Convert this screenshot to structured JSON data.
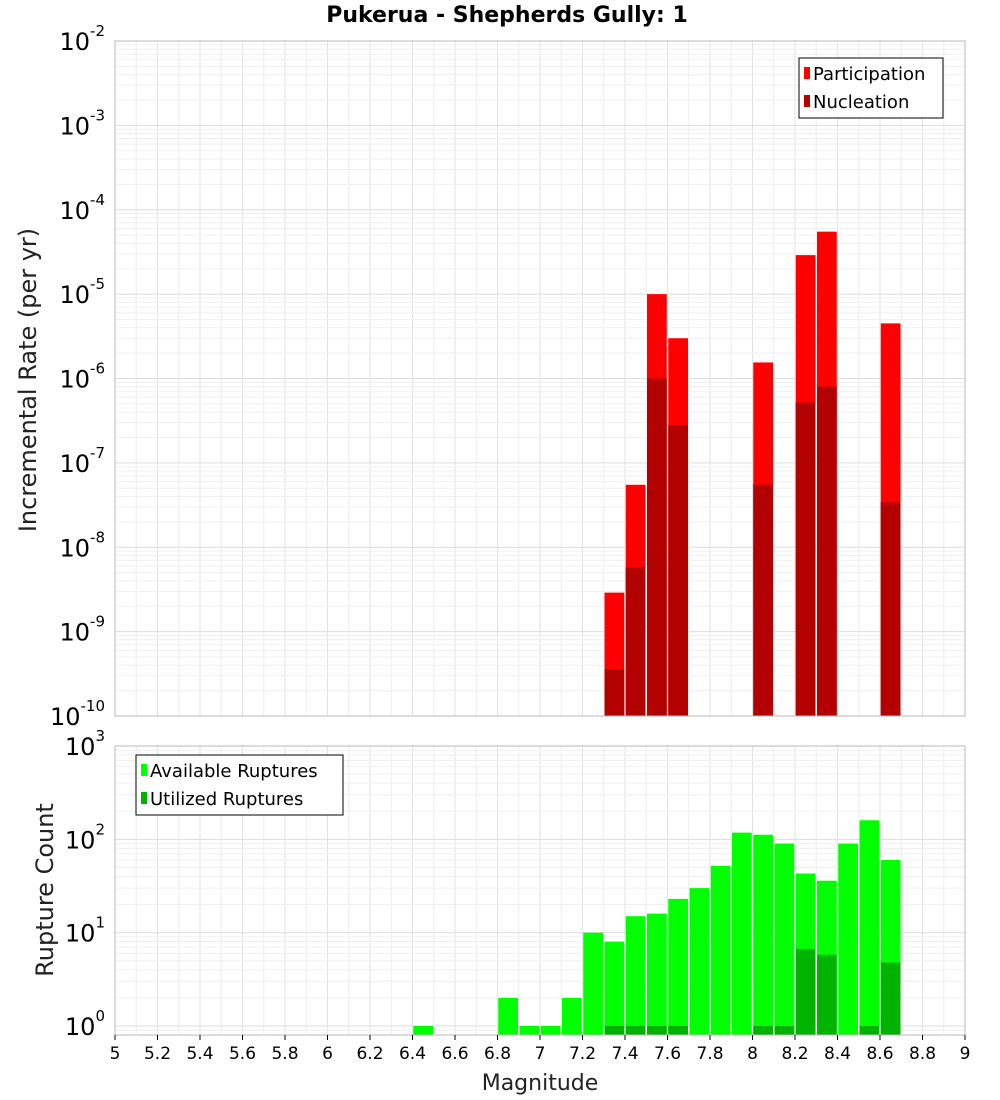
{
  "chart_data": [
    {
      "type": "bar",
      "title": "Pukerua - Shepherds Gully: 1",
      "xlabel": "",
      "ylabel": "Incremental Rate (per yr)",
      "yscale": "log",
      "ylim": [
        1e-10,
        0.01
      ],
      "xlim": [
        5,
        9
      ],
      "yticks": [
        {
          "base": "10",
          "exp": "-10"
        },
        {
          "base": "10",
          "exp": "-9"
        },
        {
          "base": "10",
          "exp": "-8"
        },
        {
          "base": "10",
          "exp": "-7"
        },
        {
          "base": "10",
          "exp": "-6"
        },
        {
          "base": "10",
          "exp": "-5"
        },
        {
          "base": "10",
          "exp": "-4"
        },
        {
          "base": "10",
          "exp": "-3"
        },
        {
          "base": "10",
          "exp": "-2"
        }
      ],
      "legend_position": "top-right",
      "grid": true,
      "series": [
        {
          "name": "Participation",
          "color": "#ff0000",
          "points": [
            {
              "x": 7.35,
              "y": 2.9e-09
            },
            {
              "x": 7.45,
              "y": 5.5e-08
            },
            {
              "x": 7.55,
              "y": 1e-05
            },
            {
              "x": 7.65,
              "y": 3e-06
            },
            {
              "x": 8.05,
              "y": 1.55e-06
            },
            {
              "x": 8.25,
              "y": 2.9e-05
            },
            {
              "x": 8.35,
              "y": 5.5e-05
            },
            {
              "x": 8.65,
              "y": 4.5e-06
            }
          ]
        },
        {
          "name": "Nucleation",
          "color": "#b30000",
          "points": [
            {
              "x": 7.35,
              "y": 3.6e-10
            },
            {
              "x": 7.45,
              "y": 5.8e-09
            },
            {
              "x": 7.55,
              "y": 1e-06
            },
            {
              "x": 7.65,
              "y": 2.8e-07
            },
            {
              "x": 8.05,
              "y": 5.5e-08
            },
            {
              "x": 8.25,
              "y": 5.2e-07
            },
            {
              "x": 8.35,
              "y": 8e-07
            },
            {
              "x": 8.65,
              "y": 3.4e-08
            }
          ]
        }
      ]
    },
    {
      "type": "bar",
      "title": "",
      "xlabel": "Magnitude",
      "ylabel": "Rupture Count",
      "yscale": "log",
      "ylim": [
        0.8,
        1000
      ],
      "xlim": [
        5,
        9
      ],
      "xticks": [
        "5",
        "5.2",
        "5.4",
        "5.6",
        "5.8",
        "6",
        "6.2",
        "6.4",
        "6.6",
        "6.8",
        "7",
        "7.2",
        "7.4",
        "7.6",
        "7.8",
        "8",
        "8.2",
        "8.4",
        "8.6",
        "8.8",
        "9"
      ],
      "yticks": [
        {
          "value": 1,
          "base": "10",
          "exp": "0"
        },
        {
          "value": 10,
          "base": "10",
          "exp": "1"
        },
        {
          "value": 100,
          "base": "10",
          "exp": "2"
        },
        {
          "value": 1000,
          "base": "10",
          "exp": "3"
        }
      ],
      "legend_position": "top-left",
      "grid": true,
      "series": [
        {
          "name": "Available Ruptures",
          "color": "#00ff00",
          "points": [
            {
              "x": 6.45,
              "y": 1
            },
            {
              "x": 6.85,
              "y": 2
            },
            {
              "x": 6.95,
              "y": 1
            },
            {
              "x": 7.05,
              "y": 1
            },
            {
              "x": 7.15,
              "y": 2
            },
            {
              "x": 7.25,
              "y": 10
            },
            {
              "x": 7.35,
              "y": 8
            },
            {
              "x": 7.45,
              "y": 15
            },
            {
              "x": 7.55,
              "y": 16
            },
            {
              "x": 7.65,
              "y": 23
            },
            {
              "x": 7.75,
              "y": 30
            },
            {
              "x": 7.85,
              "y": 52
            },
            {
              "x": 7.95,
              "y": 118
            },
            {
              "x": 8.05,
              "y": 112
            },
            {
              "x": 8.15,
              "y": 90
            },
            {
              "x": 8.25,
              "y": 43
            },
            {
              "x": 8.35,
              "y": 36
            },
            {
              "x": 8.45,
              "y": 90
            },
            {
              "x": 8.55,
              "y": 160
            },
            {
              "x": 8.65,
              "y": 60
            }
          ]
        },
        {
          "name": "Utilized Ruptures",
          "color": "#00b300",
          "points": [
            {
              "x": 7.35,
              "y": 1
            },
            {
              "x": 7.45,
              "y": 1
            },
            {
              "x": 7.55,
              "y": 1
            },
            {
              "x": 7.65,
              "y": 1
            },
            {
              "x": 8.05,
              "y": 1
            },
            {
              "x": 8.15,
              "y": 1
            },
            {
              "x": 8.25,
              "y": 6.7
            },
            {
              "x": 8.35,
              "y": 5.8
            },
            {
              "x": 8.55,
              "y": 1
            },
            {
              "x": 8.65,
              "y": 4.8
            }
          ]
        }
      ]
    }
  ]
}
